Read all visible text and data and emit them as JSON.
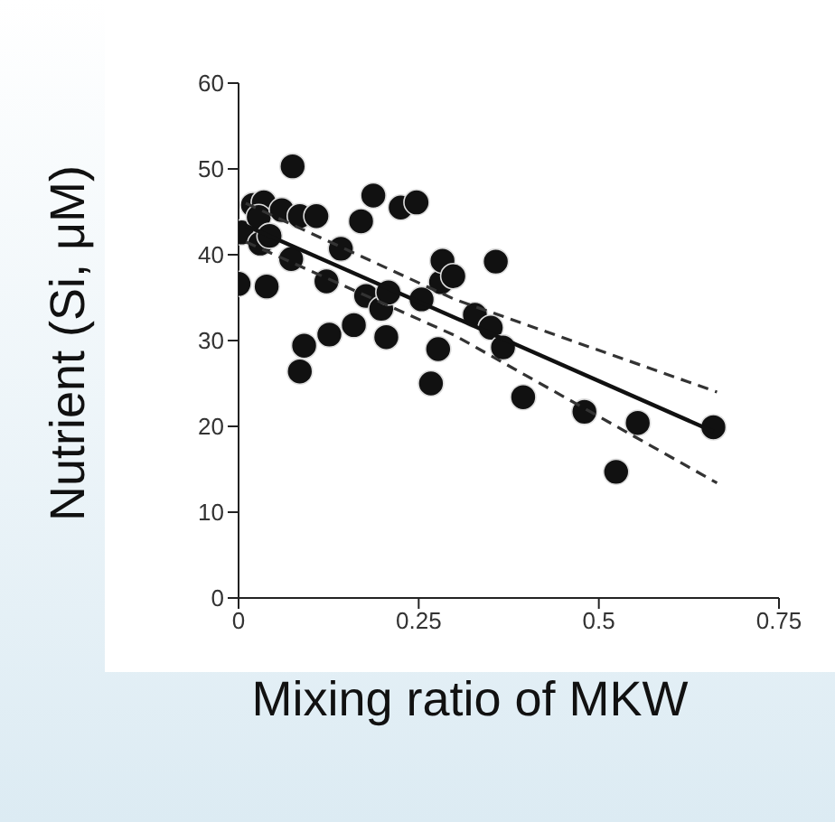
{
  "chart_data": {
    "type": "scatter",
    "xlabel": "Mixing ratio of MKW",
    "ylabel": "Nutrient (Si, μM)",
    "xlim": [
      0,
      0.75
    ],
    "xticks": [
      0,
      0.25,
      0.5,
      0.75
    ],
    "ylim": [
      0,
      60
    ],
    "yticks": [
      0,
      10,
      20,
      30,
      40,
      50,
      60
    ],
    "grid": false,
    "marker": "circle",
    "series": [
      {
        "color": "#111111",
        "x": [
          0,
          0.004,
          0.02,
          0.035,
          0.028,
          0.03,
          0.043,
          0.039,
          0.06,
          0.075,
          0.073,
          0.085,
          0.108,
          0.091,
          0.085,
          0.122,
          0.142,
          0.126,
          0.16,
          0.17,
          0.187,
          0.177,
          0.198,
          0.208,
          0.205,
          0.225,
          0.247,
          0.254,
          0.277,
          0.267,
          0.281,
          0.283,
          0.298,
          0.328,
          0.35,
          0.357,
          0.367,
          0.395,
          0.48,
          0.554,
          0.524,
          0.659
        ],
        "values": [
          36.6,
          42.6,
          45.8,
          46.1,
          44.4,
          41.3,
          42.2,
          36.3,
          45.2,
          50.3,
          39.5,
          44.5,
          44.5,
          29.4,
          26.4,
          36.9,
          40.7,
          30.7,
          31.8,
          43.9,
          46.9,
          35.2,
          33.7,
          35.6,
          30.4,
          45.5,
          46.1,
          34.8,
          29.0,
          25.0,
          36.8,
          39.3,
          37.5,
          33.0,
          31.5,
          39.2,
          29.2,
          23.4,
          21.7,
          20.4,
          14.7,
          19.9
        ]
      },
      {
        "type": "line",
        "color": "#111111",
        "marker": "none",
        "line_style": "solid",
        "x": [
          0.01,
          0.659
        ],
        "values": [
          43.4,
          19.4
        ]
      },
      {
        "type": "line",
        "color": "#333333",
        "marker": "none",
        "line_style": "dashed",
        "x": [
          0.01,
          0.3,
          0.664
        ],
        "values": [
          46,
          34.8,
          24
        ]
      },
      {
        "type": "line",
        "color": "#333333",
        "marker": "none",
        "line_style": "dashed",
        "x": [
          0.01,
          0.3,
          0.664
        ],
        "values": [
          41.5,
          30.6,
          13.4
        ]
      }
    ]
  }
}
